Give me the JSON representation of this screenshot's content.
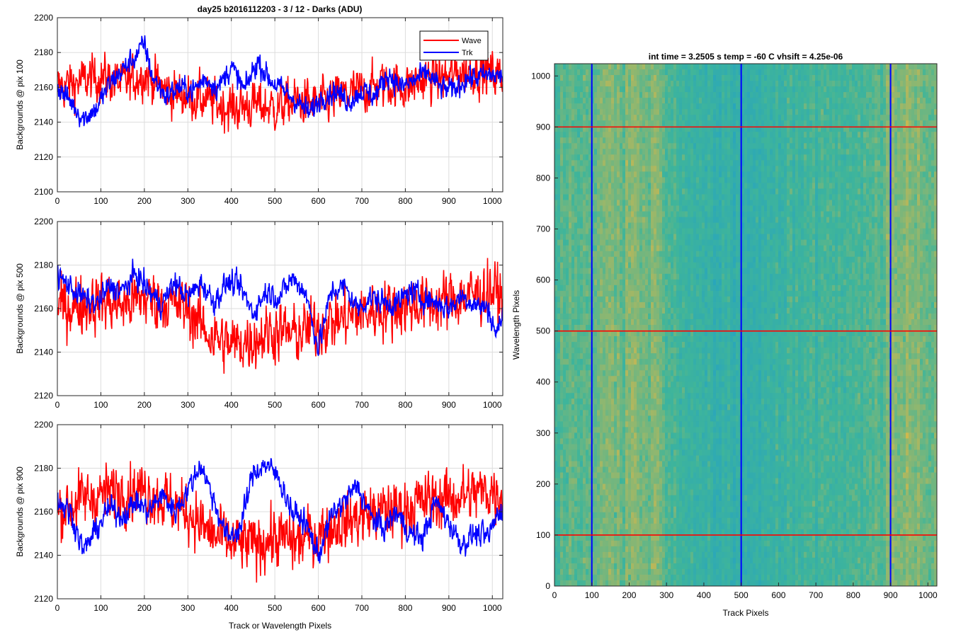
{
  "figure": {
    "title": "day25 b2016112203 - 3 / 12 - Darks (ADU)",
    "heatmap_title": "int time = 3.2505 s    temp = -60 C    vhsift = 4.25e-06"
  },
  "legend": {
    "items": [
      {
        "label": "Wave",
        "color": "#ff0000"
      },
      {
        "label": "Trk",
        "color": "#0000ff"
      }
    ]
  },
  "chart_data": [
    {
      "type": "line",
      "ylabel": "Backgrounds @ pix 100",
      "xlabel": "",
      "xlim": [
        0,
        1024
      ],
      "ylim": [
        2100,
        2200
      ],
      "yticks": [
        2100,
        2120,
        2140,
        2160,
        2180,
        2200
      ],
      "xticks": [
        0,
        100,
        200,
        300,
        400,
        500,
        600,
        700,
        800,
        900,
        1000
      ],
      "grid": true,
      "legend": "top-right",
      "series": [
        {
          "name": "Wave",
          "color": "#ff0000",
          "x": [
            0,
            50,
            100,
            150,
            200,
            250,
            300,
            350,
            400,
            450,
            500,
            550,
            600,
            650,
            700,
            750,
            800,
            850,
            900,
            950,
            1000,
            1024
          ],
          "values": [
            2160,
            2163,
            2166,
            2162,
            2168,
            2158,
            2155,
            2152,
            2148,
            2150,
            2148,
            2152,
            2150,
            2155,
            2158,
            2162,
            2160,
            2165,
            2166,
            2170,
            2168,
            2166
          ],
          "noise": 12
        },
        {
          "name": "Trk",
          "color": "#0000ff",
          "x": [
            0,
            30,
            60,
            90,
            120,
            150,
            180,
            200,
            220,
            250,
            280,
            310,
            340,
            370,
            400,
            430,
            460,
            490,
            520,
            550,
            580,
            610,
            640,
            670,
            700,
            730,
            760,
            790,
            820,
            850,
            880,
            910,
            940,
            970,
            1000,
            1024
          ],
          "values": [
            2160,
            2152,
            2142,
            2148,
            2162,
            2170,
            2178,
            2185,
            2165,
            2155,
            2160,
            2158,
            2165,
            2160,
            2172,
            2158,
            2175,
            2164,
            2158,
            2152,
            2145,
            2155,
            2158,
            2152,
            2158,
            2155,
            2168,
            2160,
            2164,
            2168,
            2160,
            2158,
            2165,
            2166,
            2167,
            2166
          ],
          "noise": 6
        }
      ]
    },
    {
      "type": "line",
      "ylabel": "Backgrounds @ pix 500",
      "xlabel": "",
      "xlim": [
        0,
        1024
      ],
      "ylim": [
        2120,
        2200
      ],
      "yticks": [
        2120,
        2140,
        2160,
        2180,
        2200
      ],
      "xticks": [
        0,
        100,
        200,
        300,
        400,
        500,
        600,
        700,
        800,
        900,
        1000
      ],
      "grid": true,
      "series": [
        {
          "name": "Wave",
          "color": "#ff0000",
          "x": [
            0,
            50,
            100,
            150,
            200,
            250,
            300,
            350,
            400,
            450,
            500,
            550,
            600,
            650,
            700,
            750,
            800,
            850,
            900,
            950,
            1000,
            1024
          ],
          "values": [
            2160,
            2162,
            2163,
            2162,
            2165,
            2163,
            2160,
            2148,
            2143,
            2146,
            2150,
            2148,
            2152,
            2155,
            2158,
            2160,
            2162,
            2162,
            2164,
            2166,
            2168,
            2166
          ],
          "noise": 12
        },
        {
          "name": "Trk",
          "color": "#0000ff",
          "x": [
            0,
            30,
            60,
            90,
            120,
            150,
            180,
            210,
            240,
            270,
            300,
            330,
            360,
            390,
            420,
            450,
            480,
            510,
            540,
            570,
            600,
            630,
            660,
            690,
            720,
            750,
            780,
            810,
            840,
            870,
            900,
            930,
            960,
            990,
            1010,
            1024
          ],
          "values": [
            2175,
            2170,
            2165,
            2162,
            2170,
            2168,
            2176,
            2168,
            2162,
            2172,
            2165,
            2172,
            2163,
            2172,
            2170,
            2158,
            2168,
            2165,
            2174,
            2168,
            2142,
            2168,
            2170,
            2160,
            2165,
            2163,
            2162,
            2168,
            2165,
            2163,
            2160,
            2166,
            2162,
            2160,
            2148,
            2158
          ],
          "noise": 5
        }
      ]
    },
    {
      "type": "line",
      "ylabel": "Backgrounds @ pix 900",
      "xlabel": "Track or Wavelength Pixels",
      "xlim": [
        0,
        1024
      ],
      "ylim": [
        2120,
        2200
      ],
      "yticks": [
        2120,
        2140,
        2160,
        2180,
        2200
      ],
      "xticks": [
        0,
        100,
        200,
        300,
        400,
        500,
        600,
        700,
        800,
        900,
        1000
      ],
      "grid": true,
      "series": [
        {
          "name": "Wave",
          "color": "#ff0000",
          "x": [
            0,
            50,
            100,
            150,
            200,
            250,
            300,
            350,
            400,
            450,
            500,
            550,
            600,
            650,
            700,
            750,
            800,
            850,
            900,
            950,
            1000,
            1024
          ],
          "values": [
            2160,
            2165,
            2168,
            2170,
            2170,
            2165,
            2160,
            2150,
            2145,
            2145,
            2148,
            2146,
            2150,
            2155,
            2158,
            2160,
            2162,
            2165,
            2166,
            2168,
            2170,
            2168
          ],
          "noise": 12
        },
        {
          "name": "Trk",
          "color": "#0000ff",
          "x": [
            0,
            30,
            60,
            90,
            120,
            150,
            180,
            210,
            240,
            270,
            300,
            330,
            360,
            390,
            420,
            450,
            480,
            510,
            540,
            570,
            600,
            630,
            660,
            690,
            720,
            750,
            780,
            810,
            840,
            870,
            900,
            930,
            960,
            990,
            1010,
            1024
          ],
          "values": [
            2165,
            2160,
            2142,
            2152,
            2162,
            2158,
            2165,
            2160,
            2168,
            2160,
            2170,
            2182,
            2165,
            2148,
            2152,
            2178,
            2182,
            2175,
            2160,
            2155,
            2140,
            2158,
            2165,
            2172,
            2158,
            2152,
            2160,
            2150,
            2148,
            2165,
            2155,
            2145,
            2150,
            2148,
            2158,
            2162
          ],
          "noise": 5
        }
      ]
    },
    {
      "type": "heatmap",
      "title": "int time = 3.2505 s    temp = -60 C    vhsift = 4.25e-06",
      "xlabel": "Track Pixels",
      "ylabel": "Wavelength Pixels",
      "xlim": [
        0,
        1024
      ],
      "ylim": [
        0,
        1024
      ],
      "xticks": [
        0,
        100,
        200,
        300,
        400,
        500,
        600,
        700,
        800,
        900,
        1000
      ],
      "yticks": [
        0,
        100,
        200,
        300,
        400,
        500,
        600,
        700,
        800,
        900,
        1000
      ],
      "colors": {
        "low": "#21a0c8",
        "mid": "#3fb59a",
        "high": "#d6b84a"
      },
      "column_level_x": [
        0,
        100,
        150,
        200,
        250,
        300,
        400,
        450,
        500,
        550,
        600,
        700,
        800,
        880,
        900,
        950,
        1024
      ],
      "column_level": [
        0.55,
        0.62,
        0.72,
        0.7,
        0.75,
        0.6,
        0.4,
        0.32,
        0.3,
        0.38,
        0.42,
        0.5,
        0.52,
        0.6,
        0.7,
        0.72,
        0.7
      ],
      "marker_columns": {
        "color": "#0000ff",
        "x": [
          100,
          500,
          900
        ]
      },
      "marker_rows": {
        "color": "#ff0000",
        "y": [
          100,
          500,
          900
        ]
      }
    }
  ]
}
